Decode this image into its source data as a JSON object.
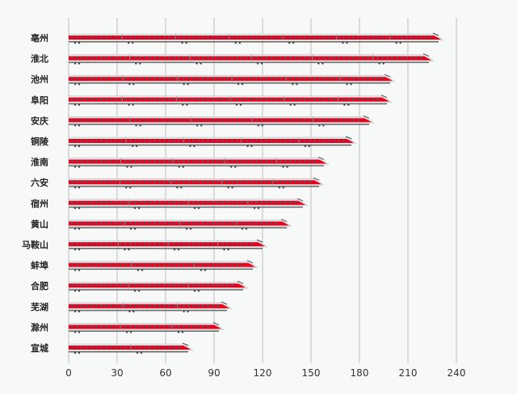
{
  "chart_data": {
    "type": "bar",
    "orientation": "horizontal",
    "title": "",
    "xlabel": "",
    "ylabel": "",
    "categories": [
      "亳州",
      "淮北",
      "池州",
      "阜阳",
      "安庆",
      "铜陵",
      "淮南",
      "六安",
      "宿州",
      "黄山",
      "马鞍山",
      "蚌埠",
      "合肥",
      "芜湖",
      "滁州",
      "宣城"
    ],
    "values": [
      232,
      226,
      202,
      200,
      189,
      178,
      161,
      158,
      148,
      138,
      123,
      117,
      111,
      101,
      96,
      77
    ],
    "xlim": [
      0,
      240
    ],
    "xticks": [
      0,
      30,
      60,
      90,
      120,
      150,
      180,
      210,
      240
    ],
    "grid": true,
    "bar_style": "high-speed-train",
    "colors": {
      "body": "#e8001c",
      "shell": "#e6e6e6",
      "window": "#555566",
      "grid": "#c8c8c8"
    }
  }
}
